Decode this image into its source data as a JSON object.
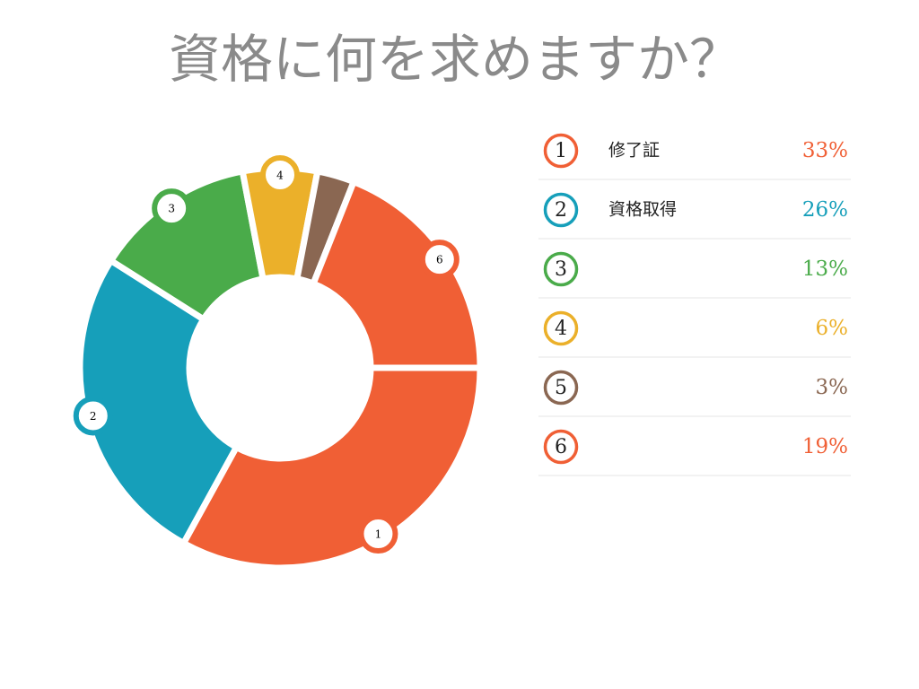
{
  "chart_data": {
    "type": "pie",
    "title": "資格に何を求めますか？",
    "categories": [
      "修了証",
      "資格取得",
      null,
      null,
      null,
      null
    ],
    "labels": [
      "1",
      "2",
      "3",
      "4",
      "5",
      "6"
    ],
    "values": [
      33,
      26,
      13,
      6,
      3,
      19
    ],
    "value_labels": [
      "33%",
      "26%",
      "13%",
      "6%",
      "3%",
      "19%"
    ],
    "colors": [
      "#f05f35",
      "#169fba",
      "#4aab4a",
      "#ebb02a",
      "#8a6752",
      "#f05f35"
    ]
  }
}
